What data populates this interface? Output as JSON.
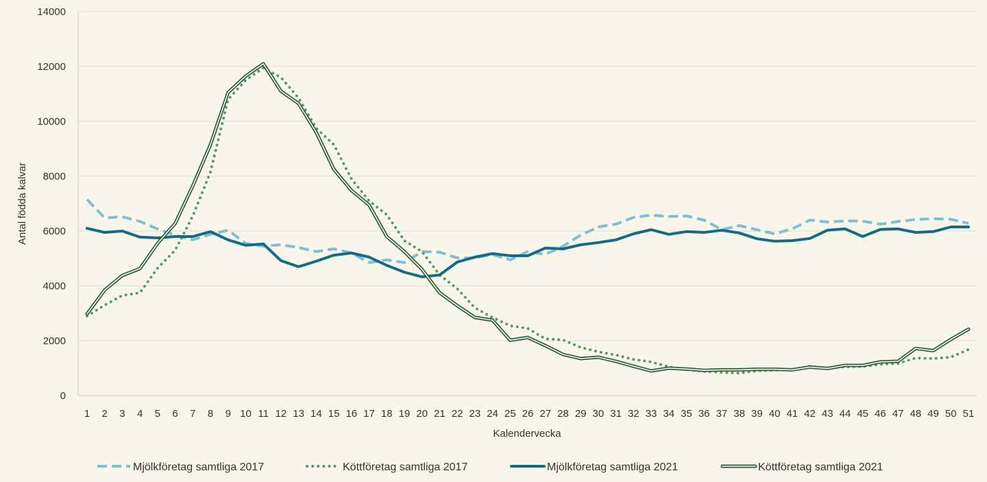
{
  "chart_data": {
    "type": "line",
    "xlabel": "Kalendervecka",
    "ylabel": "Antal födda kalvar",
    "ylim": [
      0,
      14000
    ],
    "yticks": [
      0,
      2000,
      4000,
      6000,
      8000,
      10000,
      12000,
      14000
    ],
    "grid": true,
    "legend_position": "bottom",
    "categories": [
      "1",
      "2",
      "3",
      "4",
      "5",
      "6",
      "7",
      "8",
      "9",
      "10",
      "11",
      "12",
      "13",
      "14",
      "15",
      "16",
      "17",
      "18",
      "19",
      "20",
      "21",
      "22",
      "23",
      "24",
      "25",
      "26",
      "27",
      "28",
      "29",
      "30",
      "31",
      "32",
      "33",
      "34",
      "35",
      "36",
      "37",
      "38",
      "39",
      "40",
      "41",
      "42",
      "43",
      "44",
      "45",
      "46",
      "47",
      "48",
      "49",
      "50",
      "51"
    ],
    "series": [
      {
        "name": "Mjölkföretag samtliga 2017",
        "color": "#7fbfd3",
        "style": "dashed",
        "values": [
          7150,
          6480,
          6520,
          6350,
          6080,
          5850,
          5680,
          5880,
          6030,
          5550,
          5450,
          5500,
          5400,
          5250,
          5350,
          5200,
          4850,
          4950,
          4850,
          5250,
          5230,
          5020,
          5020,
          5150,
          4950,
          5250,
          5150,
          5450,
          5850,
          6150,
          6250,
          6500,
          6580,
          6530,
          6550,
          6400,
          6050,
          6200,
          6050,
          5900,
          6080,
          6400,
          6330,
          6370,
          6360,
          6250,
          6350,
          6420,
          6450,
          6430,
          6280
        ]
      },
      {
        "name": "Köttföretag samtliga 2017",
        "color": "#5a9a63",
        "style": "dotted",
        "values": [
          2900,
          3300,
          3650,
          3750,
          4650,
          5300,
          6550,
          8150,
          10800,
          11500,
          11950,
          11600,
          10850,
          9750,
          9150,
          7900,
          7100,
          6600,
          5650,
          5250,
          4400,
          3900,
          3200,
          2850,
          2550,
          2450,
          2070,
          2030,
          1760,
          1600,
          1480,
          1320,
          1230,
          1050,
          950,
          880,
          850,
          820,
          900,
          930,
          950,
          1070,
          1000,
          1050,
          1060,
          1140,
          1170,
          1370,
          1350,
          1400,
          1680
        ]
      },
      {
        "name": "Mjölkföretag samtliga 2021",
        "color": "#126c86",
        "style": "solid-thick",
        "values": [
          6100,
          5950,
          6000,
          5780,
          5750,
          5800,
          5800,
          5980,
          5680,
          5480,
          5530,
          4920,
          4700,
          4900,
          5120,
          5200,
          5050,
          4750,
          4500,
          4330,
          4400,
          4870,
          5050,
          5180,
          5100,
          5100,
          5380,
          5350,
          5500,
          5580,
          5680,
          5900,
          6050,
          5880,
          5980,
          5950,
          6030,
          5930,
          5720,
          5630,
          5650,
          5730,
          6030,
          6080,
          5800,
          6060,
          6080,
          5950,
          5980,
          6150,
          6150
        ]
      },
      {
        "name": "Köttföretag samtliga 2021",
        "color": "#2e5e3b",
        "style": "double",
        "values": [
          2980,
          3850,
          4380,
          4630,
          5550,
          6280,
          7650,
          9150,
          11050,
          11650,
          12100,
          11100,
          10650,
          9600,
          8250,
          7480,
          6950,
          5800,
          5250,
          4600,
          3750,
          3280,
          2850,
          2750,
          2020,
          2120,
          1820,
          1500,
          1350,
          1400,
          1250,
          1070,
          900,
          1000,
          970,
          920,
          940,
          940,
          960,
          960,
          940,
          1040,
          990,
          1100,
          1100,
          1230,
          1250,
          1720,
          1640,
          2050,
          2420
        ]
      }
    ]
  }
}
